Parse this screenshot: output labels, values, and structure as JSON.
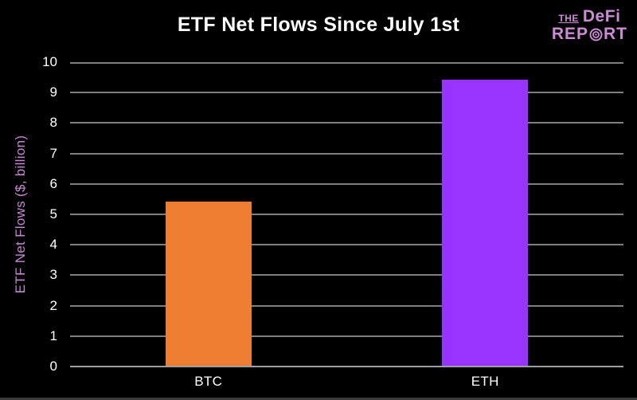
{
  "title": "ETF Net Flows Since July 1st",
  "logo": {
    "line1_small": "THE",
    "line1_large": "DeFi",
    "line2_pre": "REP",
    "line2_post": "RT",
    "color": "#cb8bd5"
  },
  "chart_data": {
    "type": "bar",
    "title": "ETF Net Flows Since July 1st",
    "categories": [
      "BTC",
      "ETH"
    ],
    "values": [
      5.4,
      9.4
    ],
    "bar_colors": [
      "#ed7d31",
      "#9933ff"
    ],
    "xlabel": "",
    "ylabel": "ETF Net Flows ($, billion)",
    "ylim": [
      0,
      10
    ],
    "yticks": [
      0,
      1,
      2,
      3,
      4,
      5,
      6,
      7,
      8,
      9,
      10
    ],
    "grid": true,
    "legend": false,
    "background_color": "#000000",
    "gridline_color": "#7f7f7f",
    "axis_line_color": "#9f9f9f",
    "tick_label_color": "#ffffff",
    "ylabel_color": "#c687d2"
  }
}
